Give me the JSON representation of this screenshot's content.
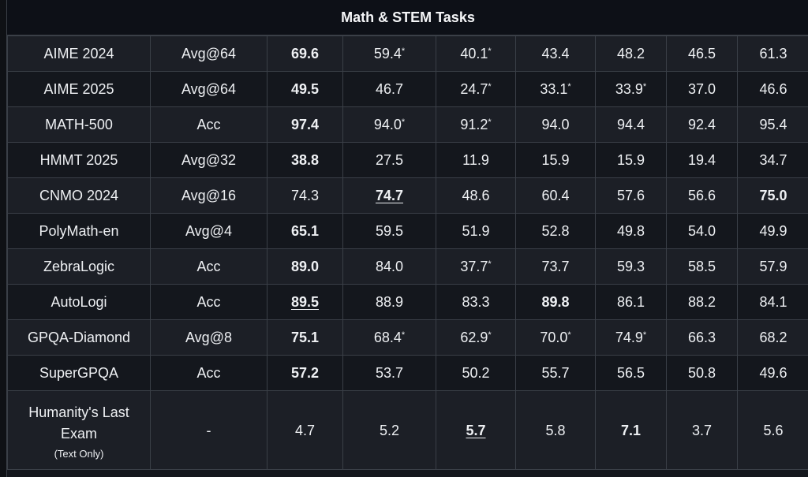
{
  "section_title": "Math & STEM Tasks",
  "rows": [
    {
      "benchmark": "AIME 2024",
      "metric": "Avg@64",
      "cells": [
        {
          "v": "69.6",
          "bold": true
        },
        {
          "v": "59.4",
          "star": true
        },
        {
          "v": "40.1",
          "star": true
        },
        {
          "v": "43.4"
        },
        {
          "v": "48.2"
        },
        {
          "v": "46.5"
        },
        {
          "v": "61.3"
        }
      ]
    },
    {
      "benchmark": "AIME 2025",
      "metric": "Avg@64",
      "cells": [
        {
          "v": "49.5",
          "bold": true
        },
        {
          "v": "46.7"
        },
        {
          "v": "24.7",
          "star": true
        },
        {
          "v": "33.1",
          "star": true
        },
        {
          "v": "33.9",
          "star": true
        },
        {
          "v": "37.0"
        },
        {
          "v": "46.6"
        }
      ]
    },
    {
      "benchmark": "MATH-500",
      "metric": "Acc",
      "cells": [
        {
          "v": "97.4",
          "bold": true
        },
        {
          "v": "94.0",
          "star": true
        },
        {
          "v": "91.2",
          "star": true
        },
        {
          "v": "94.0"
        },
        {
          "v": "94.4"
        },
        {
          "v": "92.4"
        },
        {
          "v": "95.4"
        }
      ]
    },
    {
      "benchmark": "HMMT 2025",
      "metric": "Avg@32",
      "cells": [
        {
          "v": "38.8",
          "bold": true
        },
        {
          "v": "27.5"
        },
        {
          "v": "11.9"
        },
        {
          "v": "15.9"
        },
        {
          "v": "15.9"
        },
        {
          "v": "19.4"
        },
        {
          "v": "34.7"
        }
      ]
    },
    {
      "benchmark": "CNMO 2024",
      "metric": "Avg@16",
      "cells": [
        {
          "v": "74.3"
        },
        {
          "v": "74.7",
          "bold": true,
          "underline": true
        },
        {
          "v": "48.6"
        },
        {
          "v": "60.4"
        },
        {
          "v": "57.6"
        },
        {
          "v": "56.6"
        },
        {
          "v": "75.0",
          "bold": true
        }
      ]
    },
    {
      "benchmark": "PolyMath-en",
      "metric": "Avg@4",
      "cells": [
        {
          "v": "65.1",
          "bold": true
        },
        {
          "v": "59.5"
        },
        {
          "v": "51.9"
        },
        {
          "v": "52.8"
        },
        {
          "v": "49.8"
        },
        {
          "v": "54.0"
        },
        {
          "v": "49.9"
        }
      ]
    },
    {
      "benchmark": "ZebraLogic",
      "metric": "Acc",
      "cells": [
        {
          "v": "89.0",
          "bold": true
        },
        {
          "v": "84.0"
        },
        {
          "v": "37.7",
          "star": true
        },
        {
          "v": "73.7"
        },
        {
          "v": "59.3"
        },
        {
          "v": "58.5"
        },
        {
          "v": "57.9"
        }
      ]
    },
    {
      "benchmark": "AutoLogi",
      "metric": "Acc",
      "cells": [
        {
          "v": "89.5",
          "bold": true,
          "underline": true
        },
        {
          "v": "88.9"
        },
        {
          "v": "83.3"
        },
        {
          "v": "89.8",
          "bold": true
        },
        {
          "v": "86.1"
        },
        {
          "v": "88.2"
        },
        {
          "v": "84.1"
        }
      ]
    },
    {
      "benchmark": "GPQA-Diamond",
      "metric": "Avg@8",
      "cells": [
        {
          "v": "75.1",
          "bold": true
        },
        {
          "v": "68.4",
          "star": true
        },
        {
          "v": "62.9",
          "star": true
        },
        {
          "v": "70.0",
          "star": true
        },
        {
          "v": "74.9",
          "star": true
        },
        {
          "v": "66.3"
        },
        {
          "v": "68.2"
        }
      ]
    },
    {
      "benchmark": "SuperGPQA",
      "metric": "Acc",
      "cells": [
        {
          "v": "57.2",
          "bold": true
        },
        {
          "v": "53.7"
        },
        {
          "v": "50.2"
        },
        {
          "v": "55.7"
        },
        {
          "v": "56.5"
        },
        {
          "v": "50.8"
        },
        {
          "v": "49.6"
        }
      ]
    },
    {
      "benchmark": "Humanity's Last Exam",
      "benchmark_line1": "Humanity's Last",
      "benchmark_line2": "Exam",
      "note": "(Text Only)",
      "metric": "-",
      "cells": [
        {
          "v": "4.7"
        },
        {
          "v": "5.2"
        },
        {
          "v": "5.7",
          "bold": true,
          "underline": true
        },
        {
          "v": "5.8"
        },
        {
          "v": "7.1",
          "bold": true
        },
        {
          "v": "3.7"
        },
        {
          "v": "5.6"
        }
      ]
    }
  ]
}
